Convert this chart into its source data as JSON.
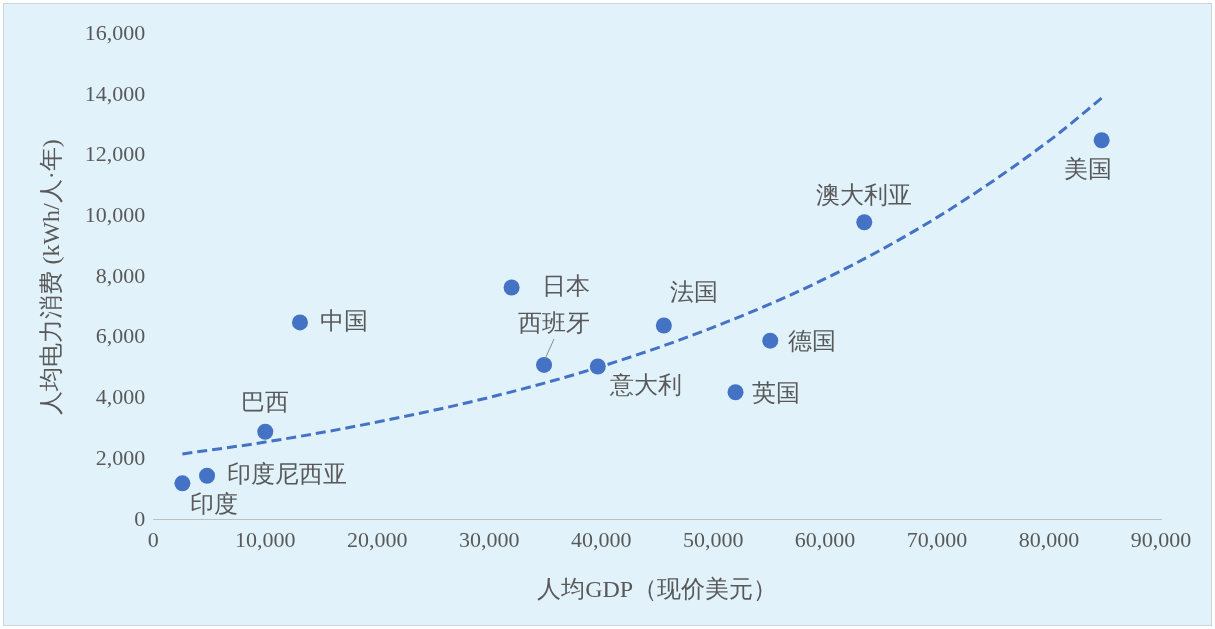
{
  "chart_data": {
    "type": "scatter",
    "xlabel": "人均GDP（现价美元）",
    "ylabel": "人均电力消费 (kWh/人·年)",
    "xlim": [
      0,
      90000
    ],
    "ylim": [
      0,
      16000
    ],
    "xticks": [
      0,
      {
        "value": 10000,
        "label": "10,000"
      },
      {
        "value": 20000,
        "label": "20,000"
      },
      {
        "value": 30000,
        "label": "30,000"
      },
      {
        "value": 40000,
        "label": "40,000"
      },
      {
        "value": 50000,
        "label": "50,000"
      },
      {
        "value": 60000,
        "label": "60,000"
      },
      {
        "value": 70000,
        "label": "70,000"
      },
      {
        "value": 80000,
        "label": "80,000"
      },
      {
        "value": 90000,
        "label": "90,000"
      }
    ],
    "yticks": [
      0,
      {
        "value": 2000,
        "label": "2,000"
      },
      {
        "value": 4000,
        "label": "4,000"
      },
      {
        "value": 6000,
        "label": "6,000"
      },
      {
        "value": 8000,
        "label": "8,000"
      },
      {
        "value": 10000,
        "label": "10,000"
      },
      {
        "value": 12000,
        "label": "12,000"
      },
      {
        "value": 14000,
        "label": "14,000"
      },
      {
        "value": 16000,
        "label": "16,000"
      }
    ],
    "grid": false,
    "legend": false,
    "marker": "circle",
    "series": [
      {
        "color": "#4472c4",
        "x": [
          2600,
          4800,
          10000,
          13100,
          32000,
          34900,
          39700,
          45600,
          52000,
          55100,
          63500,
          84700
        ],
        "values": [
          1200,
          1450,
          2900,
          6500,
          7650,
          5100,
          5050,
          6400,
          4200,
          5900,
          9800,
          12500
        ]
      },
      {
        "type": "line",
        "color": "#4472c4",
        "line_style": "dashed",
        "marker": "none",
        "x": [
          2600,
          10000,
          20000,
          30000,
          40000,
          50000,
          60000,
          70000,
          80000,
          85000
        ],
        "values": [
          2170,
          2560,
          3220,
          4030,
          5050,
          6340,
          7940,
          9960,
          12480,
          13980
        ]
      }
    ],
    "annotations": [
      {
        "text": "印度",
        "x": 2600,
        "y": 1200
      },
      {
        "text": "印度尼西亚",
        "x": 4800,
        "y": 1450
      },
      {
        "text": "巴西",
        "x": 10000,
        "y": 2900
      },
      {
        "text": "中国",
        "x": 13100,
        "y": 6500
      },
      {
        "text": "日本",
        "x": 32000,
        "y": 7650
      },
      {
        "text": "西班牙",
        "x": 34900,
        "y": 5100
      },
      {
        "text": "意大利",
        "x": 39700,
        "y": 5050
      },
      {
        "text": "法国",
        "x": 45600,
        "y": 6400
      },
      {
        "text": "英国",
        "x": 52000,
        "y": 4200
      },
      {
        "text": "德国",
        "x": 55100,
        "y": 5900
      },
      {
        "text": "澳大利亚",
        "x": 63500,
        "y": 9800
      },
      {
        "text": "美国",
        "x": 84700,
        "y": 12500
      }
    ]
  }
}
